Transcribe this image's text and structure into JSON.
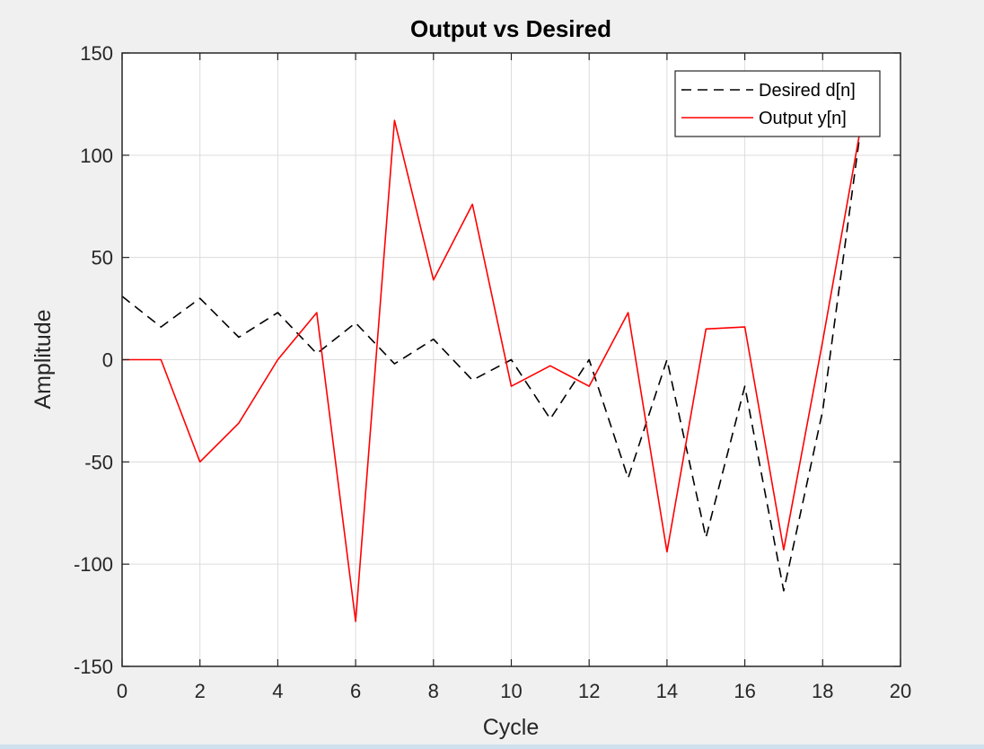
{
  "chart_data": {
    "type": "line",
    "title": "Output vs Desired",
    "xlabel": "Cycle",
    "ylabel": "Amplitude",
    "xlim": [
      0,
      20
    ],
    "ylim": [
      -150,
      150
    ],
    "xticks": [
      0,
      2,
      4,
      6,
      8,
      10,
      12,
      14,
      16,
      18,
      20
    ],
    "yticks": [
      -150,
      -100,
      -50,
      0,
      50,
      100,
      150
    ],
    "grid": true,
    "legend_position": "top-right",
    "series": [
      {
        "name": "Desired d[n]",
        "color": "#000000",
        "style": "dashed",
        "x": [
          0,
          1,
          2,
          3,
          4,
          5,
          6,
          7,
          8,
          9,
          10,
          11,
          12,
          13,
          14,
          15,
          16,
          17,
          18,
          19
        ],
        "values": [
          31,
          16,
          30,
          11,
          23,
          3,
          18,
          -2,
          10,
          -10,
          0,
          -29,
          0,
          -58,
          0,
          -87,
          -13,
          -113,
          -25,
          116
        ]
      },
      {
        "name": "Output y[n]",
        "color": "#ff0000",
        "style": "solid",
        "x": [
          0,
          1,
          2,
          3,
          4,
          5,
          6,
          7,
          8,
          9,
          10,
          11,
          12,
          13,
          14,
          15,
          16,
          17,
          18,
          19
        ],
        "values": [
          0,
          0,
          -50,
          -31,
          0,
          23,
          -128,
          117,
          39,
          76,
          -13,
          -3,
          -13,
          23,
          -94,
          15,
          16,
          -93,
          9,
          116
        ]
      }
    ]
  }
}
